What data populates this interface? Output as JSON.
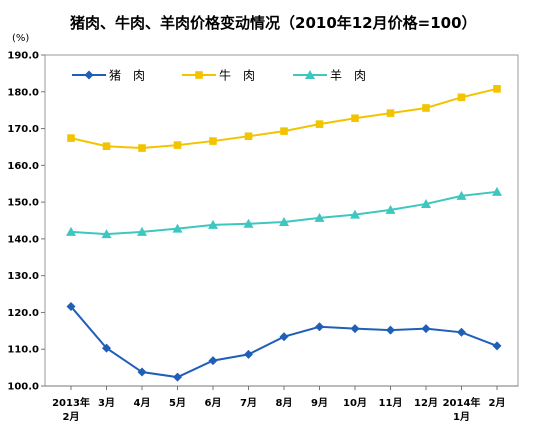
{
  "chart_data": {
    "type": "line",
    "title": "猪肉、牛肉、羊肉价格变动情况（2010年12月价格=100）",
    "unit": "(%)",
    "categories": [
      [
        "2013年",
        "2月"
      ],
      [
        "3月"
      ],
      [
        "4月"
      ],
      [
        "5月"
      ],
      [
        "6月"
      ],
      [
        "7月"
      ],
      [
        "8月"
      ],
      [
        "9月"
      ],
      [
        "10月"
      ],
      [
        "11月"
      ],
      [
        "12月"
      ],
      [
        "2014年",
        "1月"
      ],
      [
        "2月"
      ]
    ],
    "ylim": [
      100,
      190
    ],
    "yticks": [
      "100.0",
      "110.0",
      "120.0",
      "130.0",
      "140.0",
      "150.0",
      "160.0",
      "170.0",
      "180.0",
      "190.0"
    ],
    "legend_position": "top-left",
    "grid": false,
    "series": [
      {
        "name": "猪　肉",
        "color": "#1f5fb8",
        "marker": "diamond",
        "values": [
          121.6,
          110.3,
          103.8,
          102.4,
          106.9,
          108.6,
          113.4,
          116.1,
          115.6,
          115.2,
          115.6,
          114.6,
          110.9
        ]
      },
      {
        "name": "牛　肉",
        "color": "#f2c400",
        "marker": "square",
        "values": [
          167.4,
          165.2,
          164.7,
          165.5,
          166.6,
          167.9,
          169.3,
          171.2,
          172.8,
          174.2,
          175.6,
          178.5,
          180.8
        ]
      },
      {
        "name": "羊　肉",
        "color": "#3ec6c0",
        "marker": "triangle",
        "values": [
          141.9,
          141.3,
          141.9,
          142.8,
          143.8,
          144.1,
          144.6,
          145.7,
          146.6,
          147.9,
          149.5,
          151.7,
          152.8
        ]
      }
    ]
  }
}
